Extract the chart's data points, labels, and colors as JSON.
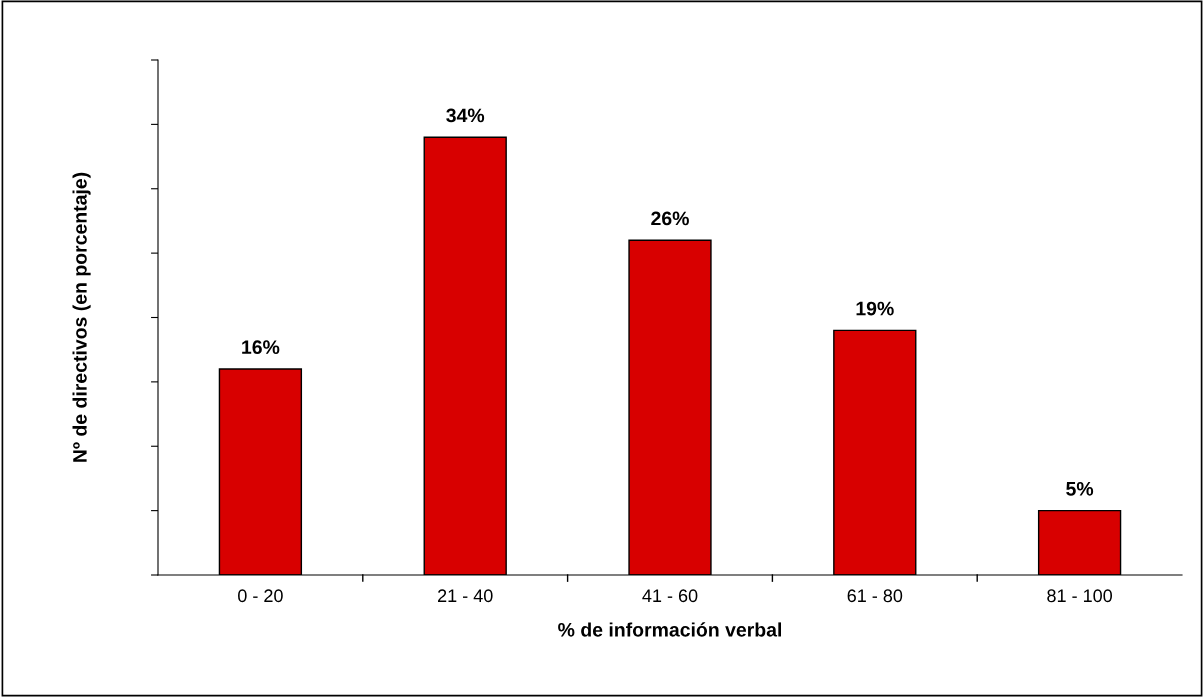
{
  "chart_data": {
    "type": "bar",
    "xlabel": "% de información verbal",
    "ylabel": "Nº de directivos (en porcentaje)",
    "categories": [
      "0 - 20",
      "21 - 40",
      "41 - 60",
      "61 - 80",
      "81 - 100"
    ],
    "values": [
      16,
      34,
      26,
      19,
      5
    ],
    "value_labels": [
      "16%",
      "34%",
      "26%",
      "19%",
      "5%"
    ],
    "color": "#d80000",
    "ylim": [
      0,
      40
    ],
    "yticks": [
      {
        "value": 0,
        "label": null
      },
      {
        "value": 5,
        "label": null
      },
      {
        "value": 10,
        "label": null
      },
      {
        "value": 15,
        "label": null
      },
      {
        "value": 20,
        "label": null
      },
      {
        "value": 25,
        "label": null
      },
      {
        "value": 30,
        "label": null
      },
      {
        "value": 35,
        "label": null
      },
      {
        "value": 40,
        "label": null
      }
    ],
    "grid": false,
    "legend": false
  }
}
